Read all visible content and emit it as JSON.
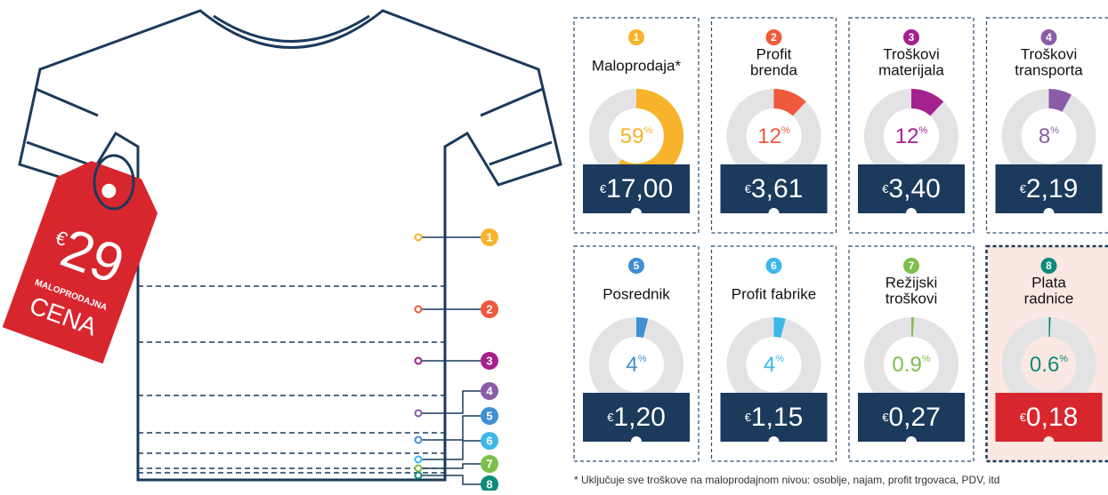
{
  "price_tag": {
    "currency": "€",
    "amount": "29",
    "line1": "MALOPRODAJNA",
    "line2": "CENA"
  },
  "percent_sign": "%",
  "currency": "€",
  "cards": [
    {
      "number": "1",
      "title": [
        "Maloprodaja*"
      ],
      "percent": 59,
      "price": "17,00",
      "color": "#f7b32b",
      "tag_color": "#1b3a5c",
      "background": "#ffffff"
    },
    {
      "number": "2",
      "title": [
        "Profit",
        "brenda"
      ],
      "percent": 12,
      "price": "3,61",
      "color": "#ee5a3b",
      "tag_color": "#1b3a5c",
      "background": "#ffffff"
    },
    {
      "number": "3",
      "title": [
        "Troškovi",
        "materijala"
      ],
      "percent": 12,
      "price": "3,40",
      "color": "#a3228e",
      "tag_color": "#1b3a5c",
      "background": "#ffffff"
    },
    {
      "number": "4",
      "title": [
        "Troškovi",
        "transporta"
      ],
      "percent": 8,
      "price": "2,19",
      "color": "#8a5ca7",
      "tag_color": "#1b3a5c",
      "background": "#ffffff"
    },
    {
      "number": "5",
      "title": [
        "Posrednik"
      ],
      "percent": 4,
      "price": "1,20",
      "color": "#3f8fd2",
      "tag_color": "#1b3a5c",
      "background": "#ffffff"
    },
    {
      "number": "6",
      "title": [
        "Profit fabrike"
      ],
      "percent": 4,
      "price": "1,15",
      "color": "#3cb8e8",
      "tag_color": "#1b3a5c",
      "background": "#ffffff"
    },
    {
      "number": "7",
      "title": [
        "Režijski",
        "troškovi"
      ],
      "percent": 0.9,
      "price": "0,27",
      "color": "#7cbf4a",
      "tag_color": "#1b3a5c",
      "background": "#ffffff"
    },
    {
      "number": "8",
      "title": [
        "Plata",
        "radnice"
      ],
      "percent": 0.6,
      "price": "0,18",
      "color": "#0e8a78",
      "tag_color": "#d8262e",
      "background": "#fbe8e3"
    }
  ],
  "footnote": "* Uključuje sve troškove na maloprodajnom nivou: osoblje, najam, profit trgovaca, PDV, itd"
}
